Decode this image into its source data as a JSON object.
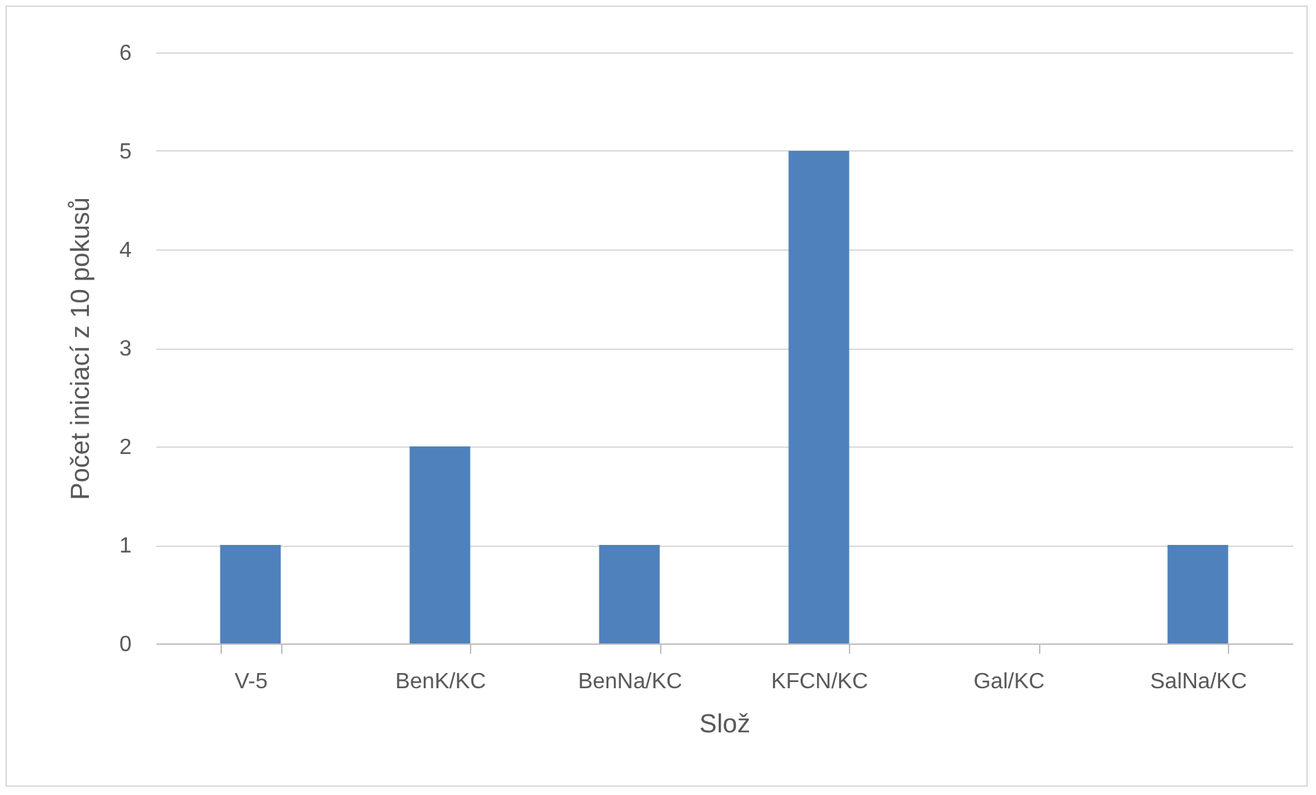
{
  "chart_data": {
    "type": "bar",
    "xlabel": "Slož",
    "ylabel": "Počet iniciací z 10 pokusů",
    "categories": [
      "V-5",
      "BenK/KC",
      "BenNa/KC",
      "KFCN/KC",
      "Gal/KC",
      "SalNa/KC"
    ],
    "values": [
      1,
      2,
      1,
      5,
      0,
      1
    ],
    "color": "#4f81bd",
    "ylim": [
      0,
      6
    ],
    "yticks": [
      0,
      1,
      2,
      3,
      4,
      5,
      6
    ],
    "grid": "y"
  }
}
